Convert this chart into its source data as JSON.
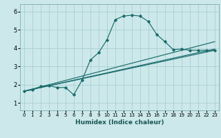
{
  "title": "",
  "xlabel": "Humidex (Indice chaleur)",
  "xlim": [
    -0.5,
    23.5
  ],
  "ylim": [
    0.6,
    6.4
  ],
  "xticks": [
    0,
    1,
    2,
    3,
    4,
    5,
    6,
    7,
    8,
    9,
    10,
    11,
    12,
    13,
    14,
    15,
    16,
    17,
    18,
    19,
    20,
    21,
    22,
    23
  ],
  "yticks": [
    1,
    2,
    3,
    4,
    5,
    6
  ],
  "background_color": "#cce8ea",
  "grid_color": "#aacfd2",
  "line_color": "#1a6b6b",
  "curve1_x": [
    0,
    1,
    2,
    3,
    4,
    5,
    6,
    7,
    8,
    9,
    10,
    11,
    12,
    13,
    14,
    15,
    16,
    17,
    18,
    19,
    20,
    21,
    22,
    23
  ],
  "curve1_y": [
    1.65,
    1.72,
    1.9,
    1.95,
    1.85,
    1.85,
    1.45,
    2.25,
    3.35,
    3.75,
    4.45,
    5.55,
    5.75,
    5.8,
    5.75,
    5.45,
    4.75,
    4.35,
    3.92,
    3.95,
    3.88,
    3.88,
    3.88,
    3.88
  ],
  "line1_x": [
    0,
    23
  ],
  "line1_y": [
    1.65,
    4.35
  ],
  "line2_x": [
    0,
    23
  ],
  "line2_y": [
    1.65,
    3.95
  ],
  "line3_x": [
    0,
    23
  ],
  "line3_y": [
    1.65,
    3.88
  ]
}
